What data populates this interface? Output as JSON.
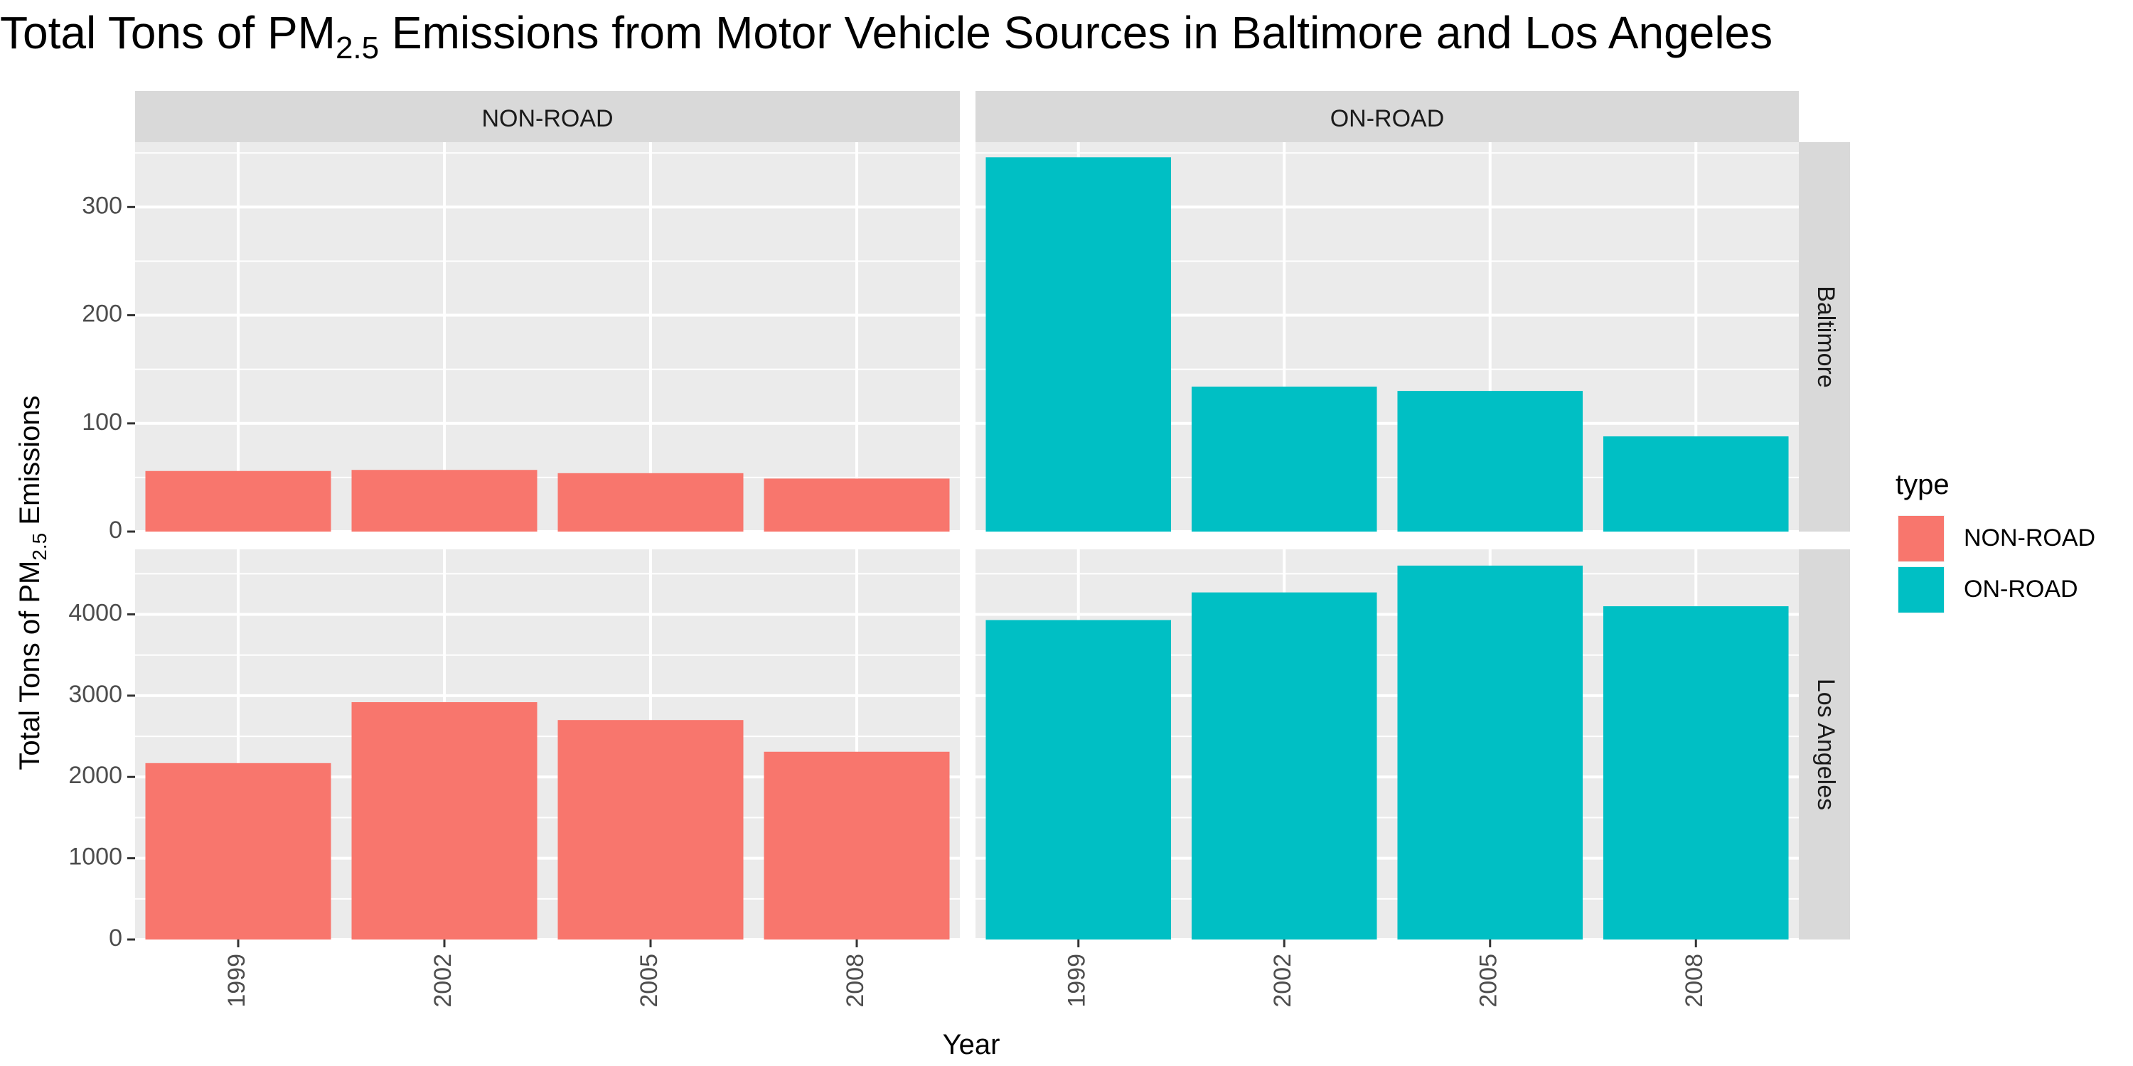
{
  "chart_data": {
    "type": "bar",
    "title": {
      "main": "Total Tons of PM",
      "sub": "2.5",
      "rest": " Emissions  from Motor Vehicle Sources in Baltimore and Los Angeles"
    },
    "xlabel": "Year",
    "ylabel": {
      "main": "Total Tons of PM",
      "sub": "2.5",
      "rest": " Emissions"
    },
    "categories": [
      "1999",
      "2002",
      "2005",
      "2008"
    ],
    "facet_columns": [
      "NON-ROAD",
      "ON-ROAD"
    ],
    "facet_rows": [
      "Baltimore",
      "Los Angeles"
    ],
    "rows": [
      {
        "name": "Baltimore",
        "ylim": [
          0,
          360
        ],
        "ticks": [
          0,
          100,
          200,
          300
        ],
        "tick_labels": [
          "0",
          "100",
          "200",
          "300"
        ],
        "panels": [
          {
            "type": "NON-ROAD",
            "values": [
              56,
              57,
              54,
              49
            ]
          },
          {
            "type": "ON-ROAD",
            "values": [
              346,
              134,
              130,
              88
            ]
          }
        ]
      },
      {
        "name": "Los Angeles",
        "ylim": [
          0,
          4800
        ],
        "ticks": [
          0,
          1000,
          2000,
          3000,
          4000
        ],
        "tick_labels": [
          "0",
          "1000",
          "2000",
          "3000",
          "4000"
        ],
        "panels": [
          {
            "type": "NON-ROAD",
            "values": [
              2170,
              2920,
              2700,
              2310
            ]
          },
          {
            "type": "ON-ROAD",
            "values": [
              3930,
              4270,
              4600,
              4100
            ]
          }
        ]
      }
    ],
    "legend": {
      "title": "type",
      "position": "right",
      "entries": [
        {
          "label": "NON-ROAD",
          "color": "#F8766D"
        },
        {
          "label": "ON-ROAD",
          "color": "#00BFC4"
        }
      ]
    },
    "grid": true,
    "colors": {
      "panel_bg": "#EBEBEB",
      "strip_bg": "#D9D9D9",
      "grid": "#FFFFFF"
    }
  }
}
